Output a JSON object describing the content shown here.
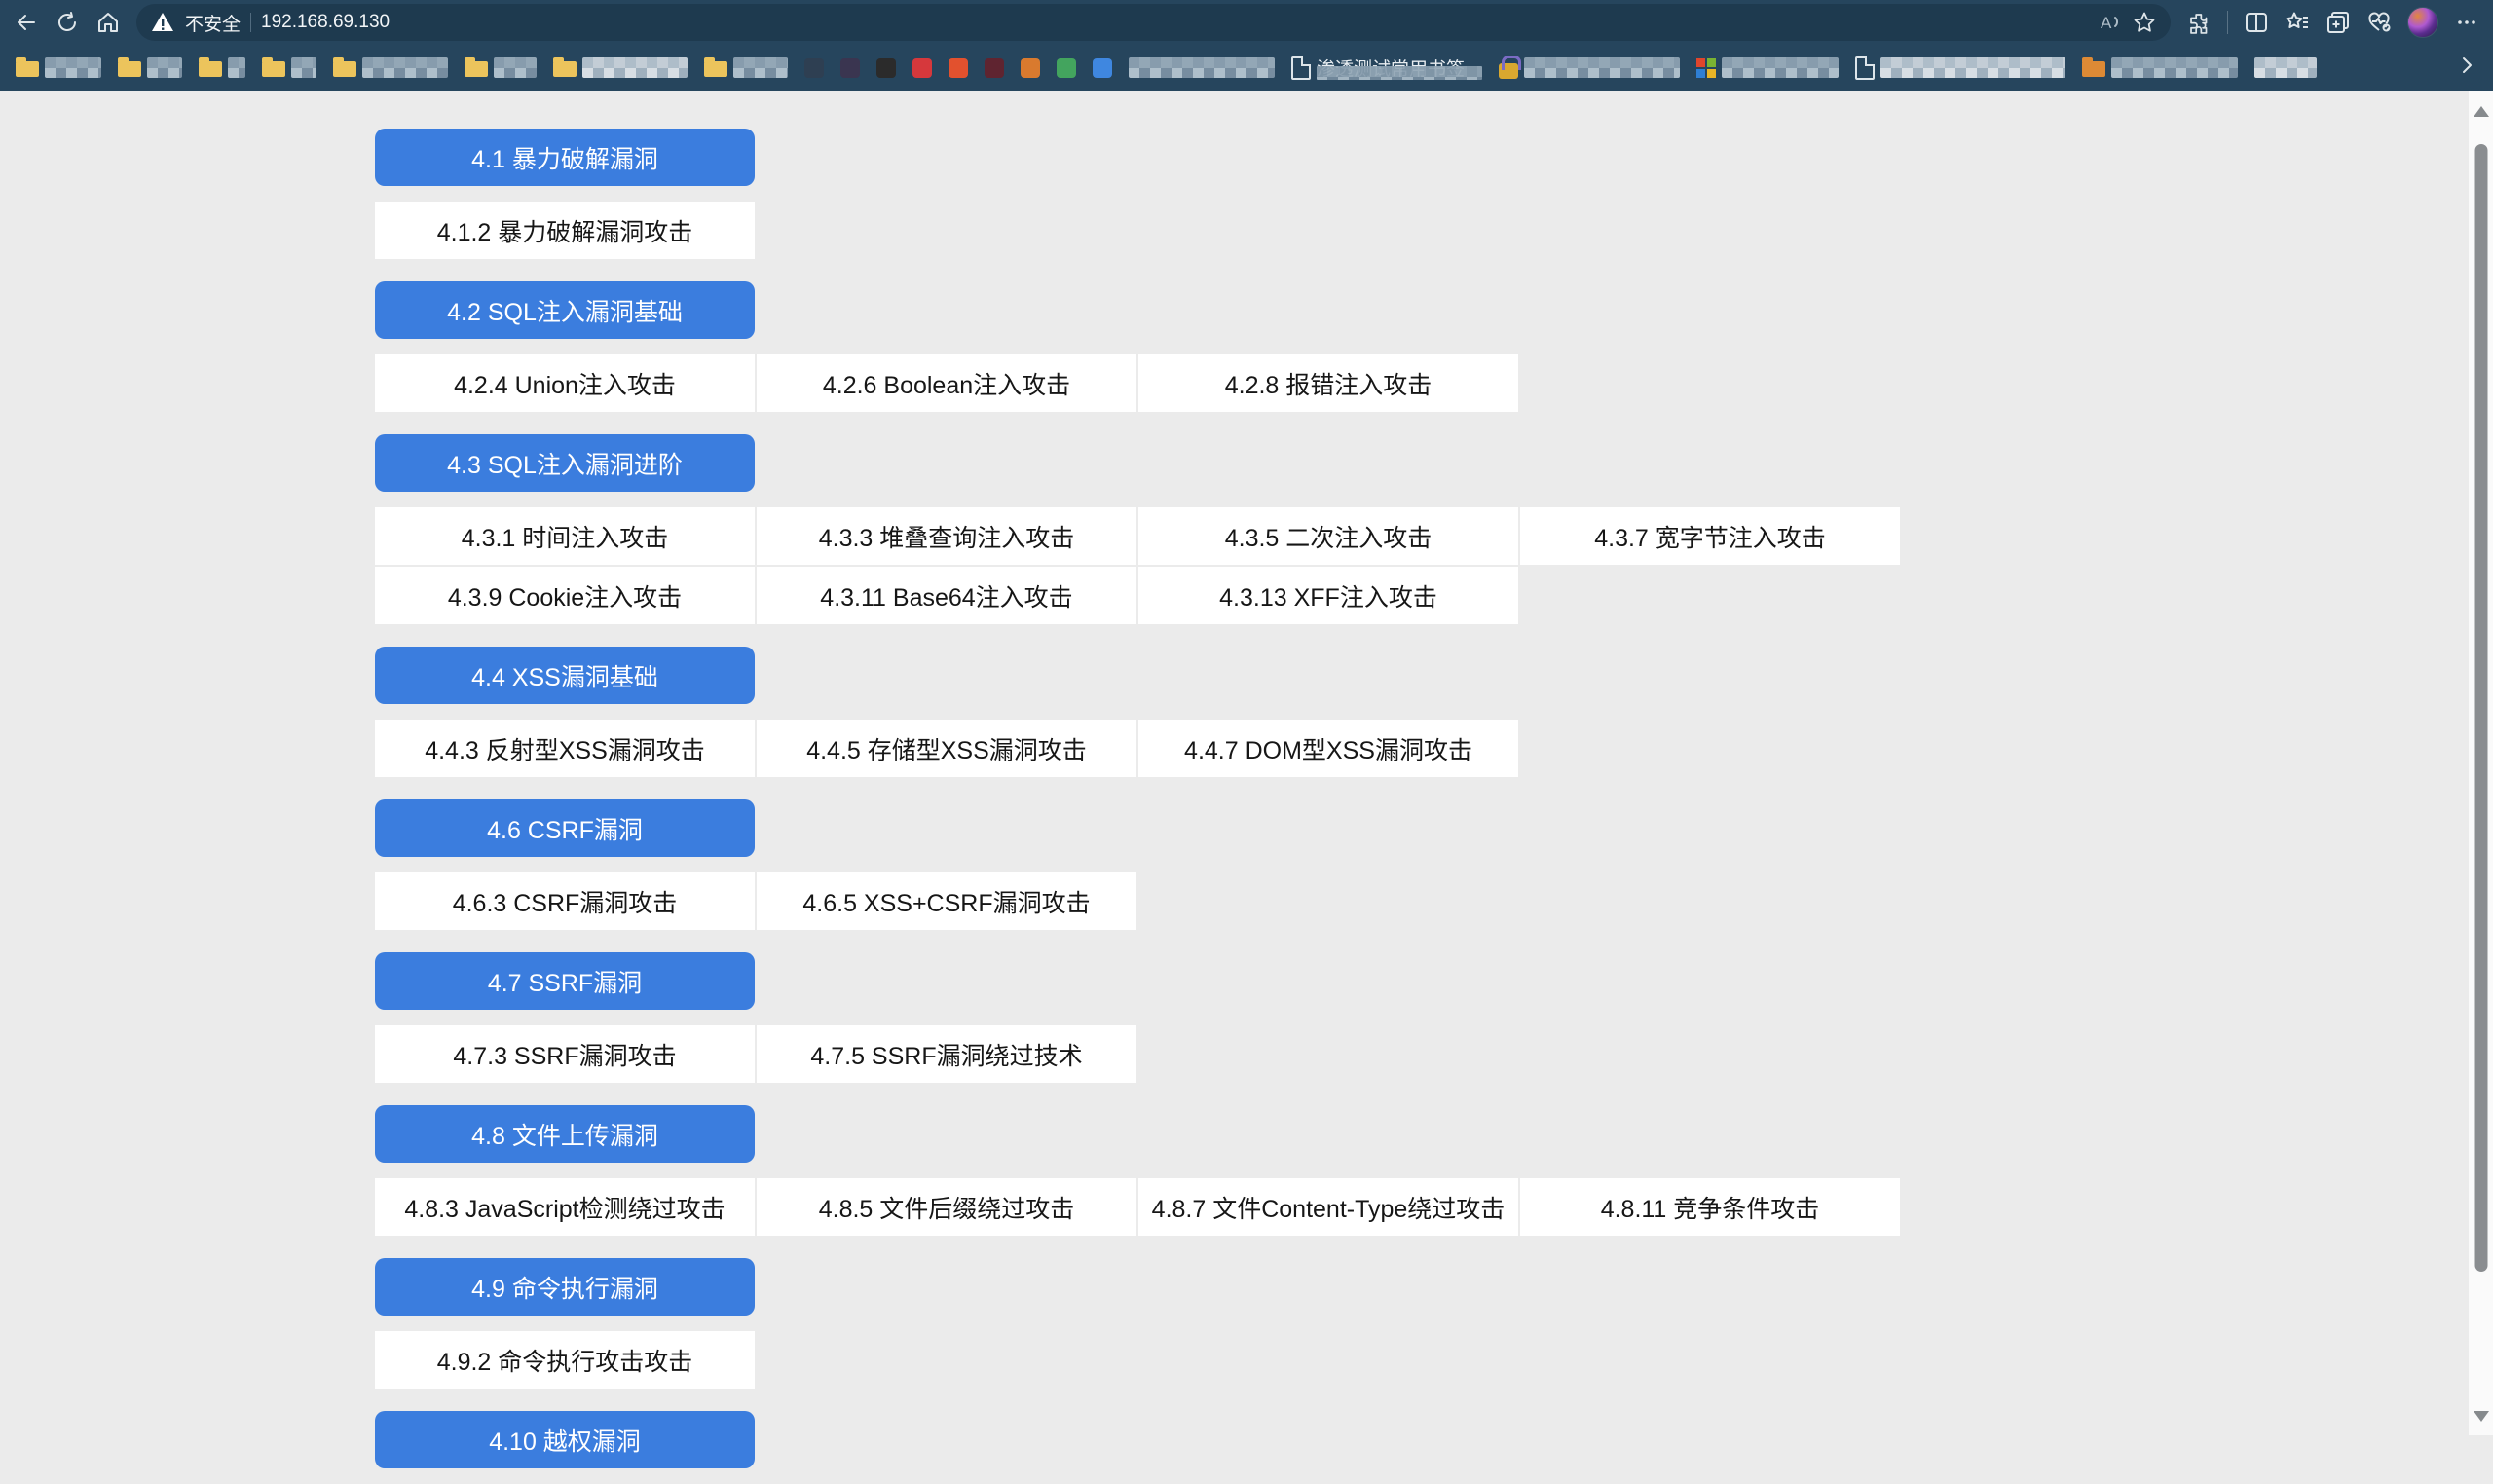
{
  "colors": {
    "chrome_bg": "#26455d",
    "address_pill_bg": "#1e3a4f",
    "page_bg": "#ebebeb",
    "accent_blue": "#3b7dde",
    "cell_bg": "#ffffff"
  },
  "browser": {
    "toolbar": {
      "security_label": "不安全",
      "address": "192.168.69.130"
    },
    "bookmarks_bar": {
      "items": [
        {
          "kind": "folder",
          "w": 58
        },
        {
          "kind": "folder",
          "w": 36
        },
        {
          "kind": "folder",
          "w": 18
        },
        {
          "kind": "folder",
          "w": 26
        },
        {
          "kind": "folder",
          "w": 88
        },
        {
          "kind": "folder",
          "w": 44
        },
        {
          "kind": "folder",
          "w": 108,
          "light": true
        },
        {
          "kind": "folder",
          "w": 56
        },
        {
          "kind": "favicon",
          "color": "#2e3f52"
        },
        {
          "kind": "favicon",
          "color": "#3a3550"
        },
        {
          "kind": "favicon",
          "color": "#2b2b2b"
        },
        {
          "kind": "favicon",
          "color": "#d6383c"
        },
        {
          "kind": "favicon",
          "color": "#e2512e"
        },
        {
          "kind": "favicon",
          "color": "#5f2430"
        },
        {
          "kind": "favicon",
          "color": "#d97a2e"
        },
        {
          "kind": "favicon",
          "color": "#43a45e"
        },
        {
          "kind": "favicon",
          "color": "#3f87e0"
        },
        {
          "kind": "blurtext",
          "w": 150
        },
        {
          "kind": "page",
          "label": "渗透测试常用书签",
          "w": 170
        },
        {
          "kind": "lock",
          "w": 160
        },
        {
          "kind": "ms",
          "w": 120
        },
        {
          "kind": "lightpage",
          "w": 190
        },
        {
          "kind": "orangefolder",
          "w": 130
        },
        {
          "kind": "blurtext",
          "w": 64,
          "light": true
        }
      ]
    }
  },
  "page": {
    "sections": [
      {
        "id": "4-1",
        "title": "4.1 暴力破解漏洞",
        "rows": [
          [
            "4.1.2 暴力破解漏洞攻击"
          ]
        ]
      },
      {
        "id": "4-2",
        "title": "4.2 SQL注入漏洞基础",
        "rows": [
          [
            "4.2.4 Union注入攻击",
            "4.2.6 Boolean注入攻击",
            "4.2.8 报错注入攻击"
          ]
        ]
      },
      {
        "id": "4-3",
        "title": "4.3 SQL注入漏洞进阶",
        "rows": [
          [
            "4.3.1 时间注入攻击",
            "4.3.3 堆叠查询注入攻击",
            "4.3.5 二次注入攻击",
            "4.3.7 宽字节注入攻击"
          ],
          [
            "4.3.9 Cookie注入攻击",
            "4.3.11 Base64注入攻击",
            "4.3.13 XFF注入攻击"
          ]
        ]
      },
      {
        "id": "4-4",
        "title": "4.4 XSS漏洞基础",
        "rows": [
          [
            "4.4.3 反射型XSS漏洞攻击",
            "4.4.5 存储型XSS漏洞攻击",
            "4.4.7 DOM型XSS漏洞攻击"
          ]
        ]
      },
      {
        "id": "4-6",
        "title": "4.6 CSRF漏洞",
        "rows": [
          [
            "4.6.3 CSRF漏洞攻击",
            "4.6.5 XSS+CSRF漏洞攻击"
          ]
        ]
      },
      {
        "id": "4-7",
        "title": "4.7 SSRF漏洞",
        "rows": [
          [
            "4.7.3 SSRF漏洞攻击",
            "4.7.5 SSRF漏洞绕过技术"
          ]
        ]
      },
      {
        "id": "4-8",
        "title": "4.8 文件上传漏洞",
        "rows": [
          [
            "4.8.3 JavaScript检测绕过攻击",
            "4.8.5 文件后缀绕过攻击",
            "4.8.7 文件Content-Type绕过攻击",
            "4.8.11 竞争条件攻击"
          ]
        ]
      },
      {
        "id": "4-9",
        "title": "4.9 命令执行漏洞",
        "rows": [
          [
            "4.9.2 命令执行攻击攻击"
          ]
        ]
      },
      {
        "id": "4-10",
        "title": "4.10 越权漏洞",
        "rows": []
      }
    ]
  }
}
